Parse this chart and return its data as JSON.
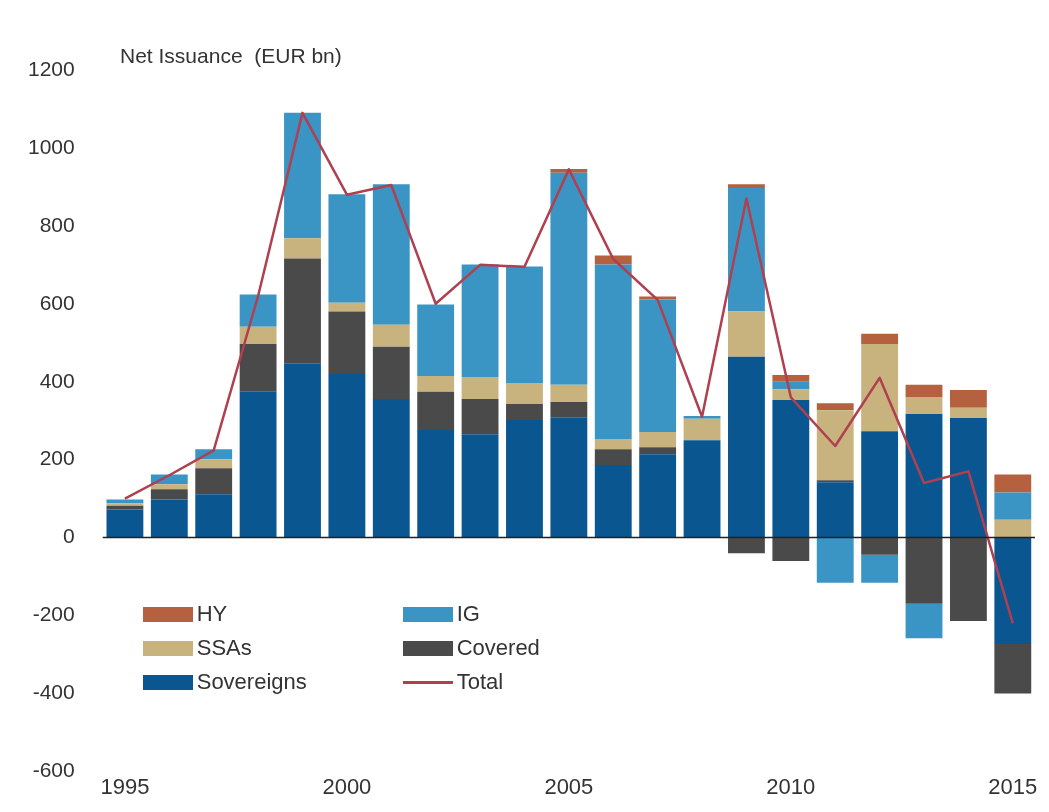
{
  "chart_data": {
    "type": "bar",
    "stacked": true,
    "title": "Net Issuance  (EUR bn)",
    "categories": [
      "1995",
      null,
      null,
      null,
      null,
      "2000",
      null,
      null,
      null,
      null,
      "2005",
      null,
      null,
      null,
      null,
      "2010",
      null,
      null,
      null,
      null,
      "2015"
    ],
    "ylim": [
      -600,
      1200
    ],
    "yticks": [
      -600,
      -400,
      -200,
      0,
      200,
      400,
      600,
      800,
      1000,
      1200
    ],
    "grid": false,
    "ref_lines": [
      {
        "axis": "y",
        "value": 0,
        "color": "#222222",
        "line_style": "solid"
      }
    ],
    "legend": "bottom left",
    "marker": "none",
    "line_style": "solid",
    "series": [
      {
        "name": "Total",
        "type": "line",
        "color": "#b04050",
        "values": [
          100,
          160,
          224,
          620,
          1090,
          880,
          905,
          600,
          700,
          695,
          945,
          715,
          610,
          310,
          870,
          360,
          235,
          410,
          140,
          170,
          -220
        ]
      },
      {
        "name": "Sovereigns",
        "color": "#0a5690",
        "values": [
          72,
          98,
          111,
          374,
          446,
          420,
          356,
          276,
          265,
          302,
          309,
          186,
          214,
          250,
          464,
          353,
          142,
          273,
          317,
          307,
          -273
        ]
      },
      {
        "name": "Covered",
        "color": "#4a4a4a",
        "values": [
          10,
          26,
          67,
          123,
          270,
          160,
          134,
          98,
          91,
          41,
          39,
          41,
          18,
          0,
          -40,
          -60,
          5,
          -44,
          -170,
          -214,
          -127
        ]
      },
      {
        "name": "SSAs",
        "color": "#c8b27e",
        "values": [
          6,
          13,
          23,
          44,
          52,
          23,
          56,
          41,
          56,
          54,
          44,
          26,
          39,
          55,
          116,
          28,
          180,
          224,
          44,
          26,
          46
        ]
      },
      {
        "name": "IG",
        "color": "#3a95c4",
        "values": [
          10,
          25,
          26,
          83,
          322,
          278,
          361,
          183,
          289,
          299,
          544,
          448,
          340,
          7,
          317,
          19,
          -116,
          -72,
          -88,
          0,
          70
        ]
      },
      {
        "name": "HY",
        "color": "#b5603f",
        "values": [
          0,
          0,
          0,
          0,
          0,
          0,
          0,
          0,
          0,
          0,
          10,
          23,
          8,
          0,
          10,
          17,
          18,
          26,
          31,
          46,
          46
        ]
      }
    ]
  }
}
